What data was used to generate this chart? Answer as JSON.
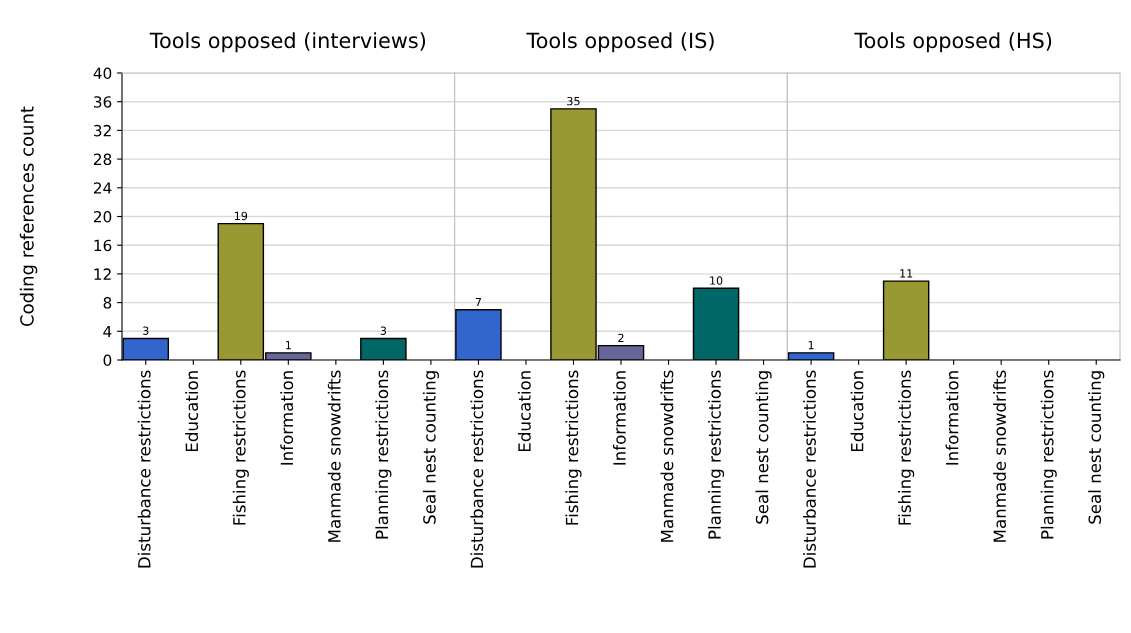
{
  "chart_data": [
    {
      "type": "bar",
      "title": "Tools opposed (interviews)",
      "ylabel": "Coding references count",
      "categories": [
        "Disturbance restrictions",
        "Education",
        "Fishing restrictions",
        "Information",
        "Manmade snowdrifts",
        "Planning restrictions",
        "Seal nest counting"
      ],
      "values": [
        3,
        0,
        19,
        1,
        0,
        3,
        0
      ],
      "value_labels": [
        "3",
        null,
        "19",
        "1",
        null,
        "3",
        null
      ],
      "colors": [
        "#3366cc",
        "#999933",
        "#999933",
        "#666699",
        "#006666",
        "#006666",
        "#006666"
      ],
      "ylim": [
        0,
        40
      ],
      "yticks": [
        0,
        4,
        8,
        12,
        16,
        20,
        24,
        28,
        32,
        36,
        40
      ],
      "grid": "y"
    },
    {
      "type": "bar",
      "title": "Tools opposed (IS)",
      "categories": [
        "Disturbance restrictions",
        "Education",
        "Fishing restrictions",
        "Information",
        "Manmade snowdrifts",
        "Planning restrictions",
        "Seal nest counting"
      ],
      "values": [
        7,
        0,
        35,
        2,
        0,
        10,
        0
      ],
      "value_labels": [
        "7",
        null,
        "35",
        "2",
        null,
        "10",
        null
      ],
      "colors": [
        "#3366cc",
        "#999933",
        "#999933",
        "#666699",
        "#006666",
        "#006666",
        "#006666"
      ],
      "ylim": [
        0,
        40
      ],
      "yticks": [
        0,
        4,
        8,
        12,
        16,
        20,
        24,
        28,
        32,
        36,
        40
      ],
      "grid": "y",
      "tick_labels": "x"
    },
    {
      "type": "bar",
      "title": "Tools opposed (HS)",
      "categories": [
        "Disturbance restrictions",
        "Education",
        "Fishing restrictions",
        "Information",
        "Manmade snowdrifts",
        "Planning restrictions",
        "Seal nest counting"
      ],
      "values": [
        1,
        0,
        11,
        0,
        0,
        0,
        0
      ],
      "value_labels": [
        "1",
        null,
        "11",
        null,
        null,
        null,
        null
      ],
      "colors": [
        "#3366cc",
        "#999933",
        "#999933",
        "#666699",
        "#006666",
        "#006666",
        "#006666"
      ],
      "ylim": [
        0,
        40
      ],
      "yticks": [
        0,
        4,
        8,
        12,
        16,
        20,
        24,
        28,
        32,
        36,
        40
      ],
      "grid": "y",
      "tick_labels": "x"
    }
  ]
}
